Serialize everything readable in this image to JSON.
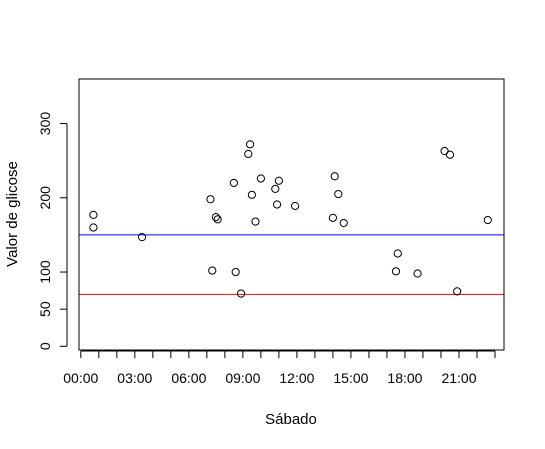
{
  "chart_data": {
    "type": "scatter",
    "xlabel": "Sábado",
    "ylabel": "Valor de glicose",
    "xlim": [
      -0.1,
      23.5
    ],
    "ylim": [
      -5,
      360
    ],
    "x_ticks": [
      {
        "value": 0,
        "label": "00:00"
      },
      {
        "value": 3,
        "label": "03:00"
      },
      {
        "value": 6,
        "label": "06:00"
      },
      {
        "value": 9,
        "label": "09:00"
      },
      {
        "value": 12,
        "label": "12:00"
      },
      {
        "value": 15,
        "label": "15:00"
      },
      {
        "value": 18,
        "label": "18:00"
      },
      {
        "value": 21,
        "label": "21:00"
      }
    ],
    "x_minor_ticks": [
      0,
      1,
      2,
      3,
      4,
      5,
      6,
      7,
      8,
      9,
      10,
      11,
      12,
      13,
      14,
      15,
      16,
      17,
      18,
      19,
      20,
      21,
      22,
      23
    ],
    "y_ticks": [
      0,
      50,
      100,
      200,
      300
    ],
    "reference_lines": [
      {
        "y": 150,
        "color": "#0000ff"
      },
      {
        "y": 70,
        "color": "#ff0000"
      }
    ],
    "points": [
      {
        "x": 0.7,
        "y": 160
      },
      {
        "x": 0.7,
        "y": 177
      },
      {
        "x": 3.4,
        "y": 147
      },
      {
        "x": 7.2,
        "y": 198
      },
      {
        "x": 7.3,
        "y": 102
      },
      {
        "x": 7.5,
        "y": 174
      },
      {
        "x": 7.6,
        "y": 171
      },
      {
        "x": 8.5,
        "y": 220
      },
      {
        "x": 8.6,
        "y": 100
      },
      {
        "x": 8.9,
        "y": 71
      },
      {
        "x": 9.3,
        "y": 259
      },
      {
        "x": 9.4,
        "y": 272
      },
      {
        "x": 9.5,
        "y": 204
      },
      {
        "x": 9.7,
        "y": 168
      },
      {
        "x": 10.0,
        "y": 226
      },
      {
        "x": 10.8,
        "y": 212
      },
      {
        "x": 10.9,
        "y": 191
      },
      {
        "x": 11.0,
        "y": 223
      },
      {
        "x": 11.9,
        "y": 189
      },
      {
        "x": 14.0,
        "y": 173
      },
      {
        "x": 14.1,
        "y": 229
      },
      {
        "x": 14.3,
        "y": 205
      },
      {
        "x": 14.6,
        "y": 166
      },
      {
        "x": 17.5,
        "y": 101
      },
      {
        "x": 17.6,
        "y": 125
      },
      {
        "x": 18.7,
        "y": 98
      },
      {
        "x": 20.2,
        "y": 263
      },
      {
        "x": 20.5,
        "y": 258
      },
      {
        "x": 20.9,
        "y": 74
      },
      {
        "x": 22.6,
        "y": 170
      }
    ],
    "grid": false,
    "legend": "none"
  }
}
